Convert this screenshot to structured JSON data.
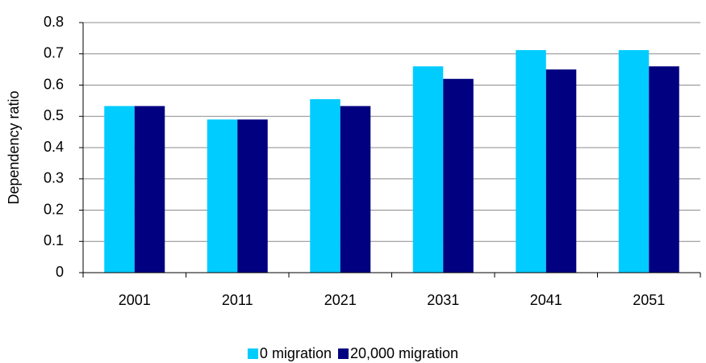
{
  "chart_data": {
    "type": "bar",
    "y_label": "Dependency ratio",
    "categories": [
      "2001",
      "2011",
      "2021",
      "2031",
      "2041",
      "2051"
    ],
    "series": [
      {
        "name": "0 migration",
        "color": "#00ccff",
        "values": [
          0.533,
          0.49,
          0.555,
          0.66,
          0.712,
          0.712
        ]
      },
      {
        "name": "20,000 migration",
        "color": "#000080",
        "values": [
          0.533,
          0.49,
          0.533,
          0.62,
          0.65,
          0.66
        ]
      }
    ],
    "ylim": [
      0,
      0.8
    ],
    "yticks": [
      0,
      0.1,
      0.2,
      0.3,
      0.4,
      0.5,
      0.6,
      0.7,
      0.8
    ],
    "grid": true,
    "legend": "bottom"
  }
}
